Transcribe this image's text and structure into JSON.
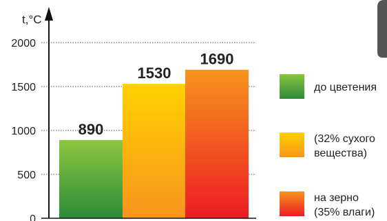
{
  "chart_data": {
    "type": "bar",
    "ylabel": "t,°C",
    "ylim": [
      0,
      2000
    ],
    "yticks": [
      0,
      500,
      1000,
      1500,
      2000
    ],
    "grid": "dotted horizontal at ticks",
    "legend_position": "right",
    "categories": [
      "до цветения",
      "(32% сухого вещества)",
      "на зерно (35% влаги)"
    ],
    "values": [
      890,
      1530,
      1690
    ],
    "data_labels": [
      "890",
      "1530",
      "1690"
    ],
    "series_colors": [
      {
        "top": "#8cc63f",
        "bottom": "#2e8b3a"
      },
      {
        "top": "#ffd200",
        "bottom": "#f7941d"
      },
      {
        "top": "#f7941d",
        "bottom": "#ed1c24"
      }
    ],
    "legend": [
      {
        "lines": [
          "до цветения"
        ]
      },
      {
        "lines": [
          "(32% сухого",
          "вещества)"
        ]
      },
      {
        "lines": [
          "на зерно",
          "(35% влаги)"
        ]
      }
    ]
  }
}
